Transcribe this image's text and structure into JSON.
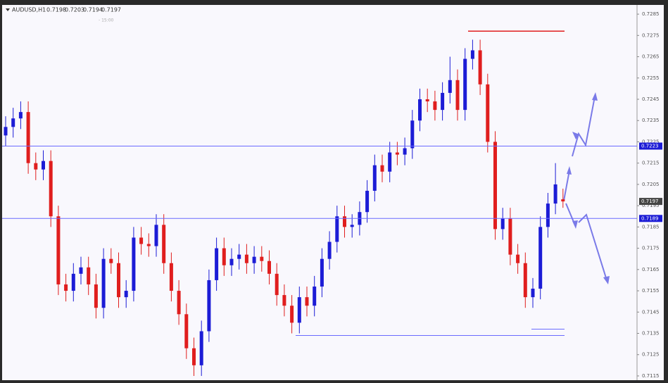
{
  "chart_data": {
    "type": "candlestick",
    "title": "AUDUSD,H1",
    "timer_label": "- 15:00",
    "up_color": "#1c1cd6",
    "down_color": "#e01e1e",
    "ylim": [
      0.7113,
      0.7289
    ],
    "yticks": [
      0.7285,
      0.7275,
      0.7265,
      0.7255,
      0.7245,
      0.7235,
      0.7225,
      0.7215,
      0.7205,
      0.7195,
      0.7185,
      0.7175,
      0.7165,
      0.7155,
      0.7145,
      0.7135,
      0.7125,
      0.7115
    ],
    "open": [
      0.7228,
      0.7232,
      0.7236,
      0.7239,
      0.7215,
      0.7212,
      0.7216,
      0.719,
      0.7158,
      0.7155,
      0.7163,
      0.7166,
      0.7158,
      0.7147,
      0.717,
      0.7168,
      0.7152,
      0.7155,
      0.718,
      0.7177,
      0.7176,
      0.7186,
      0.7168,
      0.7155,
      0.7144,
      0.7128,
      0.712,
      0.7136,
      0.716,
      0.7175,
      0.7167,
      0.717,
      0.7172,
      0.7168,
      0.7171,
      0.7169,
      0.7163,
      0.7153,
      0.7148,
      0.714,
      0.7152,
      0.7148,
      0.7157,
      0.717,
      0.7178,
      0.719,
      0.7185,
      0.7186,
      0.7192,
      0.7202,
      0.7214,
      0.7211,
      0.722,
      0.7219,
      0.7222,
      0.7235,
      0.7245,
      0.7244,
      0.724,
      0.7248,
      0.7254,
      0.724,
      0.7264,
      0.7268,
      0.7252,
      0.7225,
      0.7184,
      0.7189,
      0.7172,
      0.7168,
      0.7152,
      0.7156,
      0.7185,
      0.7196,
      0.7198
    ],
    "high": [
      0.7237,
      0.7241,
      0.7244,
      0.7244,
      0.722,
      0.7221,
      0.7221,
      0.7195,
      0.7163,
      0.7168,
      0.7171,
      0.7171,
      0.7163,
      0.7175,
      0.7175,
      0.7173,
      0.716,
      0.7185,
      0.7185,
      0.7182,
      0.7191,
      0.7191,
      0.7173,
      0.716,
      0.7149,
      0.7133,
      0.7141,
      0.7165,
      0.718,
      0.718,
      0.7175,
      0.7177,
      0.7177,
      0.7176,
      0.7176,
      0.7174,
      0.7168,
      0.7158,
      0.7153,
      0.7157,
      0.7157,
      0.7162,
      0.7175,
      0.7183,
      0.7195,
      0.7195,
      0.7191,
      0.7197,
      0.7207,
      0.7219,
      0.7219,
      0.7225,
      0.7225,
      0.7227,
      0.724,
      0.725,
      0.725,
      0.7249,
      0.7253,
      0.7265,
      0.7259,
      0.7269,
      0.7273,
      0.7273,
      0.7257,
      0.723,
      0.7194,
      0.7194,
      0.7177,
      0.7173,
      0.7161,
      0.719,
      0.7201,
      0.7215,
      0.7203
    ],
    "low": [
      0.7223,
      0.7227,
      0.7231,
      0.721,
      0.7207,
      0.7207,
      0.7185,
      0.7153,
      0.715,
      0.715,
      0.7158,
      0.7153,
      0.7142,
      0.7142,
      0.7163,
      0.7147,
      0.7147,
      0.715,
      0.7172,
      0.7171,
      0.7171,
      0.7163,
      0.715,
      0.7139,
      0.7123,
      0.7115,
      0.7115,
      0.7131,
      0.7155,
      0.7162,
      0.7162,
      0.7165,
      0.7163,
      0.7163,
      0.7164,
      0.7158,
      0.7148,
      0.7143,
      0.7135,
      0.7135,
      0.7143,
      0.7143,
      0.7152,
      0.7165,
      0.7173,
      0.718,
      0.718,
      0.7181,
      0.7187,
      0.7197,
      0.7206,
      0.7206,
      0.7214,
      0.7214,
      0.7217,
      0.723,
      0.7239,
      0.7235,
      0.7235,
      0.7243,
      0.7235,
      0.7235,
      0.7259,
      0.7247,
      0.722,
      0.7179,
      0.7179,
      0.7167,
      0.7163,
      0.7147,
      0.7147,
      0.7151,
      0.718,
      0.7191,
      0.7194
    ],
    "close": [
      0.7232,
      0.7236,
      0.7239,
      0.7215,
      0.7212,
      0.7216,
      0.719,
      0.7158,
      0.7155,
      0.7163,
      0.7166,
      0.7158,
      0.7147,
      0.717,
      0.7168,
      0.7152,
      0.7155,
      0.718,
      0.7177,
      0.7176,
      0.7186,
      0.7168,
      0.7155,
      0.7144,
      0.7128,
      0.712,
      0.7136,
      0.716,
      0.7175,
      0.7167,
      0.717,
      0.7172,
      0.7168,
      0.7171,
      0.7169,
      0.7163,
      0.7153,
      0.7148,
      0.714,
      0.7152,
      0.7148,
      0.7157,
      0.717,
      0.7178,
      0.719,
      0.7185,
      0.7186,
      0.7192,
      0.7202,
      0.7214,
      0.7211,
      0.722,
      0.7219,
      0.7222,
      0.7235,
      0.7245,
      0.7244,
      0.724,
      0.7248,
      0.7254,
      0.724,
      0.7264,
      0.7268,
      0.7252,
      0.7225,
      0.7184,
      0.7189,
      0.7172,
      0.7168,
      0.7152,
      0.7156,
      0.7185,
      0.7196,
      0.7205,
      0.7197
    ],
    "levels": [
      {
        "price": 0.7223,
        "color": "#6b6bff"
      },
      {
        "price": 0.7189,
        "color": "#6b6bff"
      }
    ],
    "segments": [
      {
        "price": 0.7277,
        "color": "#e01e1e"
      },
      {
        "price": 0.7134,
        "color": "#6b6bff"
      },
      {
        "price": 0.7137,
        "color": "#6b6bff"
      }
    ]
  }
}
